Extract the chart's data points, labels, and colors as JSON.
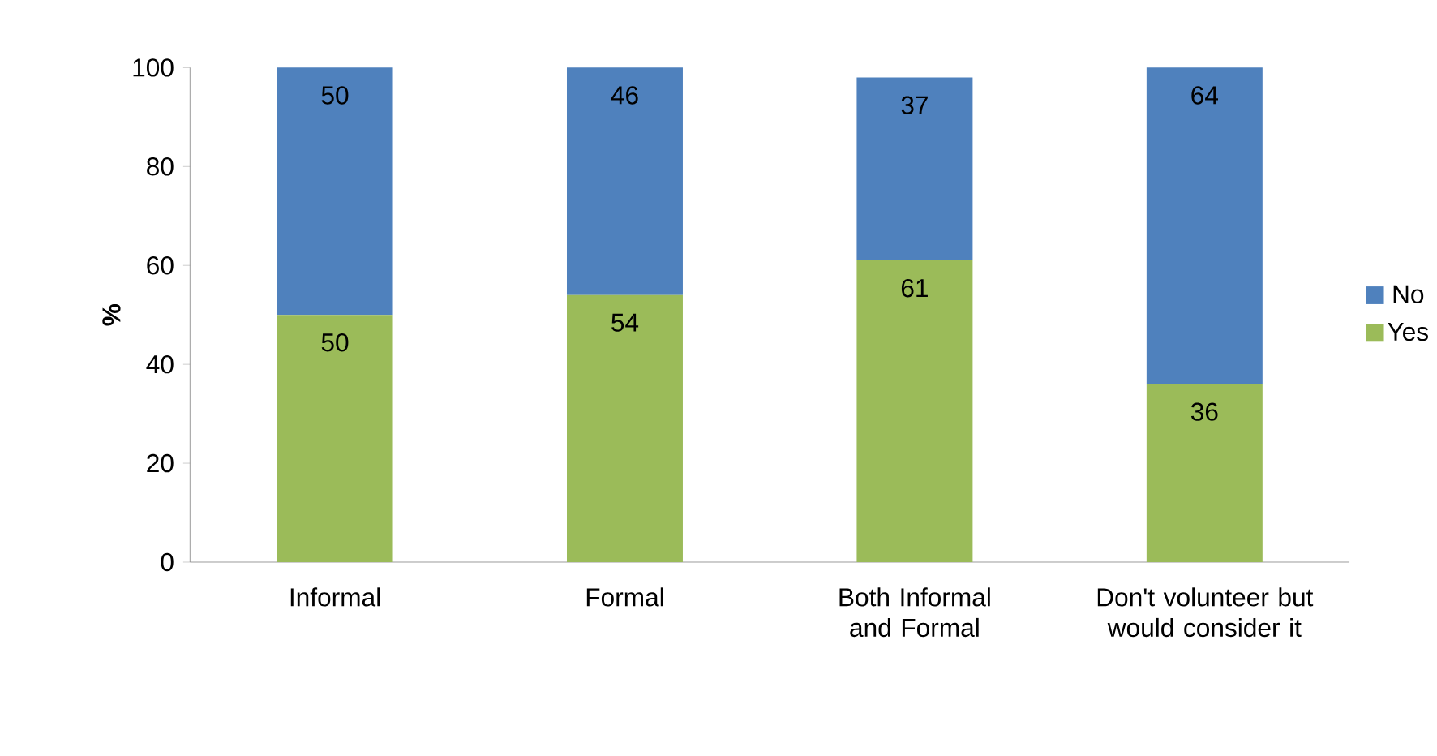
{
  "chart_data": {
    "type": "bar",
    "stacked": true,
    "ylabel": "%",
    "categories": [
      "Informal",
      "Formal",
      "Both Informal and Formal",
      "Don't volunteer but would consider it"
    ],
    "series": [
      {
        "name": "Yes",
        "color": "#9bbb59",
        "values": [
          50,
          54,
          61,
          36
        ]
      },
      {
        "name": "No",
        "color": "#4f81bd",
        "values": [
          50,
          46,
          37,
          64
        ]
      }
    ],
    "ylim": [
      0,
      100
    ],
    "yticks": [
      0,
      20,
      40,
      60,
      80,
      100
    ],
    "data_labels": true,
    "legend": "right",
    "grid": false
  }
}
